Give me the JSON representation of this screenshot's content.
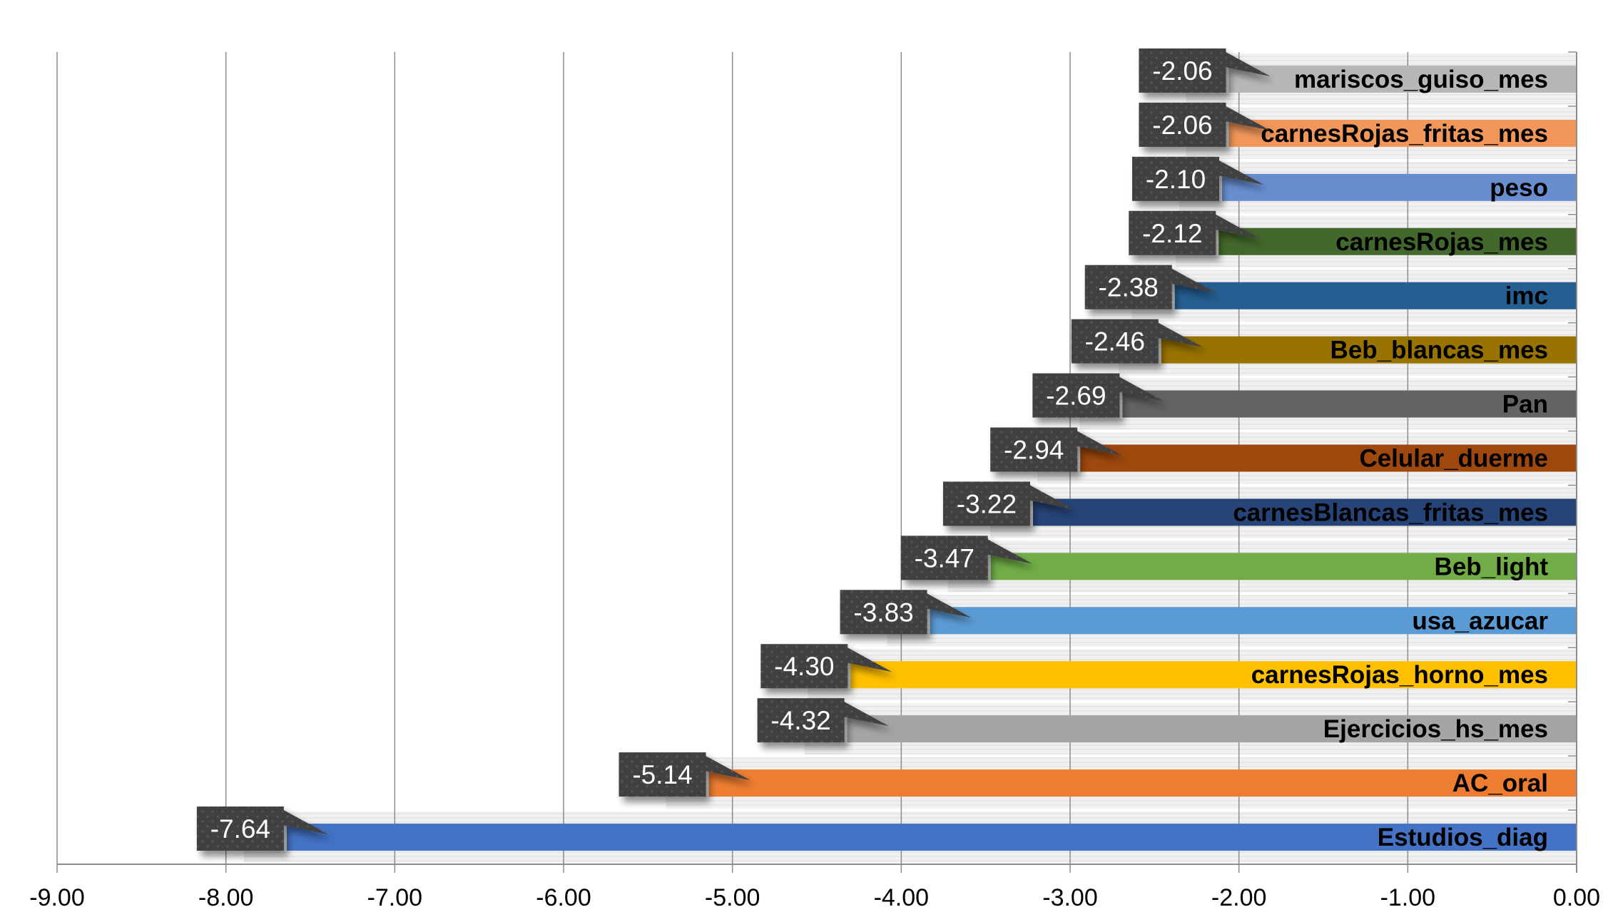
{
  "chart_data": {
    "type": "bar",
    "orientation": "horizontal",
    "title": "",
    "xlabel": "",
    "ylabel": "",
    "xlim": [
      -9,
      0
    ],
    "x_ticks": [
      "-9.00",
      "-8.00",
      "-7.00",
      "-6.00",
      "-5.00",
      "-4.00",
      "-3.00",
      "-2.00",
      "-1.00",
      "0.00"
    ],
    "grid": "vertical",
    "legend": "none",
    "categories": [
      "mariscos_guiso_mes",
      "carnesRojas_fritas_mes",
      "peso",
      "carnesRojas_mes",
      "imc",
      "Beb_blancas_mes",
      "Pan",
      "Celular_duerme",
      "carnesBlancas_fritas_mes",
      "Beb_light",
      "usa_azucar",
      "carnesRojas_horno_mes",
      "Ejercicios_hs_mes",
      "AC_oral",
      "Estudios_diag"
    ],
    "values": [
      -2.06,
      -2.06,
      -2.1,
      -2.12,
      -2.38,
      -2.46,
      -2.69,
      -2.94,
      -3.22,
      -3.47,
      -3.83,
      -4.3,
      -4.32,
      -5.14,
      -7.64
    ],
    "value_labels": [
      "-2.06",
      "-2.06",
      "-2.10",
      "-2.12",
      "-2.38",
      "-2.46",
      "-2.69",
      "-2.94",
      "-3.22",
      "-3.47",
      "-3.83",
      "-4.30",
      "-4.32",
      "-5.14",
      "-7.64"
    ],
    "colors": [
      "#B7B7B7",
      "#F1975A",
      "#698ED0",
      "#43682B",
      "#255E91",
      "#997300",
      "#636363",
      "#9E480E",
      "#264478",
      "#70AD47",
      "#5B9BD5",
      "#FFC000",
      "#A5A5A5",
      "#ED7D31",
      "#4472C4"
    ],
    "label_box_color": "#404040",
    "gridline_color": "#8C8C8C",
    "band_color": "#EDEDED"
  }
}
